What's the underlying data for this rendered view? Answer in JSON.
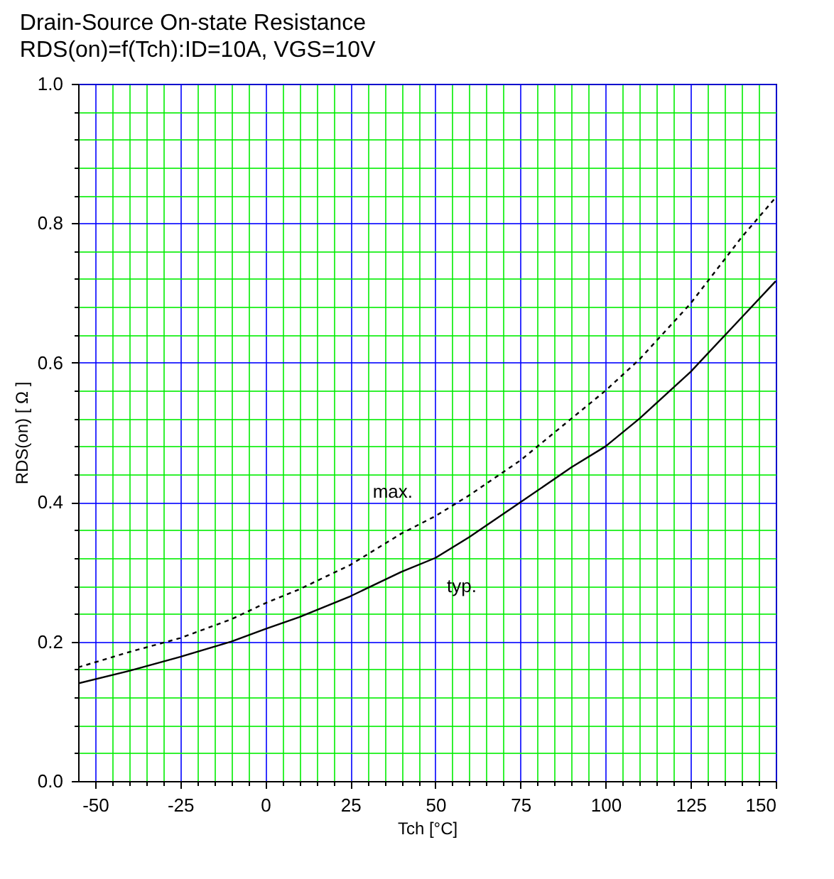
{
  "chart_data": {
    "type": "line",
    "title": "Drain-Source On-state Resistance",
    "subtitle": "RDS(on)=f(Tch):ID=10A, VGS=10V",
    "xlabel": "Tch [°C]",
    "ylabel": "RDS(on) [ Ω ]",
    "x": [
      -55,
      -40,
      -25,
      -10,
      0,
      10,
      25,
      40,
      50,
      60,
      75,
      90,
      100,
      110,
      125,
      140,
      150
    ],
    "series": [
      {
        "name": "max.",
        "color": "#000000",
        "line_style": "dashed",
        "values": [
          0.163,
          0.185,
          0.205,
          0.232,
          0.255,
          0.275,
          0.31,
          0.355,
          0.38,
          0.41,
          0.46,
          0.52,
          0.56,
          0.605,
          0.685,
          0.78,
          0.837
        ]
      },
      {
        "name": "typ.",
        "color": "#000000",
        "line_style": "solid",
        "values": [
          0.14,
          0.158,
          0.178,
          0.2,
          0.218,
          0.235,
          0.265,
          0.3,
          0.32,
          0.35,
          0.4,
          0.45,
          0.48,
          0.52,
          0.587,
          0.665,
          0.717
        ]
      }
    ],
    "xlim": [
      -55,
      150
    ],
    "ylim": [
      0,
      1
    ],
    "xticks": [
      -50,
      {
        "value": -45,
        "label": null
      },
      {
        "value": -40,
        "label": null
      },
      {
        "value": -35,
        "label": null
      },
      {
        "value": -30,
        "label": null
      },
      -25,
      {
        "value": -20,
        "label": null
      },
      {
        "value": -15,
        "label": null
      },
      {
        "value": -10,
        "label": null
      },
      {
        "value": -5,
        "label": null
      },
      0,
      {
        "value": 5,
        "label": null
      },
      {
        "value": 10,
        "label": null
      },
      {
        "value": 15,
        "label": null
      },
      {
        "value": 20,
        "label": null
      },
      25,
      {
        "value": 30,
        "label": null
      },
      {
        "value": 35,
        "label": null
      },
      {
        "value": 40,
        "label": null
      },
      {
        "value": 45,
        "label": null
      },
      50,
      {
        "value": 55,
        "label": null
      },
      {
        "value": 60,
        "label": null
      },
      {
        "value": 65,
        "label": null
      },
      {
        "value": 70,
        "label": null
      },
      75,
      {
        "value": 80,
        "label": null
      },
      {
        "value": 85,
        "label": null
      },
      {
        "value": 90,
        "label": null
      },
      {
        "value": 95,
        "label": null
      },
      100,
      {
        "value": 105,
        "label": null
      },
      {
        "value": 110,
        "label": null
      },
      {
        "value": 115,
        "label": null
      },
      {
        "value": 120,
        "label": null
      },
      125,
      {
        "value": 130,
        "label": null
      },
      {
        "value": 135,
        "label": null
      },
      {
        "value": 140,
        "label": null
      },
      {
        "value": 145,
        "label": null
      },
      150
    ],
    "yticks": [
      {
        "value": 0,
        "label": "0.0"
      },
      {
        "value": 0.04,
        "label": null
      },
      {
        "value": 0.08,
        "label": null
      },
      {
        "value": 0.12,
        "label": null
      },
      {
        "value": 0.16,
        "label": null
      },
      0.2,
      {
        "value": 0.24,
        "label": null
      },
      {
        "value": 0.28,
        "label": null
      },
      {
        "value": 0.32,
        "label": null
      },
      {
        "value": 0.36,
        "label": null
      },
      0.4,
      {
        "value": 0.44,
        "label": null
      },
      {
        "value": 0.48,
        "label": null
      },
      {
        "value": 0.52,
        "label": null
      },
      {
        "value": 0.56,
        "label": null
      },
      0.6,
      {
        "value": 0.64,
        "label": null
      },
      {
        "value": 0.68,
        "label": null
      },
      {
        "value": 0.72,
        "label": null
      },
      {
        "value": 0.76,
        "label": null
      },
      0.8,
      {
        "value": 0.84,
        "label": null
      },
      {
        "value": 0.88,
        "label": null
      },
      {
        "value": 0.92,
        "label": null
      },
      {
        "value": 0.96,
        "label": null
      },
      {
        "value": 1,
        "label": "1.0"
      }
    ],
    "grid": true
  }
}
